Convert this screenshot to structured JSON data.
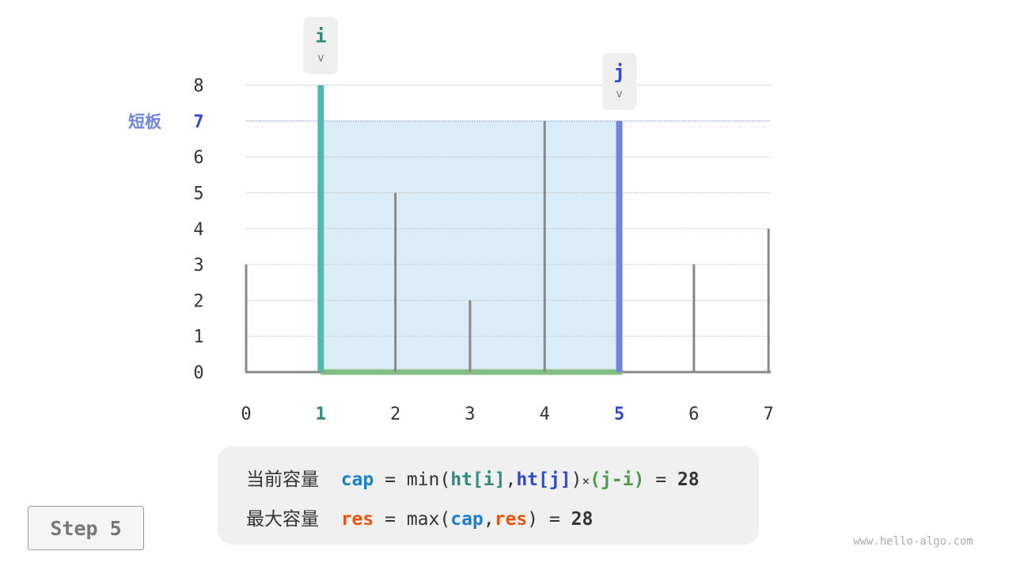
{
  "chart_data": {
    "type": "bar",
    "categories": [
      "0",
      "1",
      "2",
      "3",
      "4",
      "5",
      "6",
      "7"
    ],
    "values": [
      3,
      8,
      5,
      2,
      7,
      7,
      3,
      4
    ],
    "yticks": [
      "0",
      "1",
      "2",
      "3",
      "4",
      "5",
      "6",
      "7",
      "8"
    ],
    "ylim": [
      0,
      8
    ],
    "pointer_i": {
      "label": "i",
      "index": 1,
      "arrow": "v"
    },
    "pointer_j": {
      "label": "j",
      "index": 5,
      "arrow": "v"
    },
    "short_board_label": "短板",
    "short_board_value": 7,
    "colors": {
      "i": "#52b8ae",
      "j": "#7085e0",
      "area": "#dbecf9",
      "base": "#82bd82",
      "bar": "#888888",
      "i_text": "#2e8a7a",
      "j_text": "#2e48d0"
    }
  },
  "formula": {
    "line1": {
      "label": "当前容量",
      "var": "cap",
      "eq": "=",
      "fn": "min(",
      "a": "ht[i]",
      "comma": ",",
      "b": "ht[j]",
      "close": ")",
      "times": "×",
      "c": "(j-i)",
      "eq2": "=",
      "result": "28"
    },
    "line2": {
      "label": "最大容量",
      "var": "res",
      "eq": "=",
      "fn": "max(",
      "a": "cap",
      "comma": ",",
      "b": "res",
      "close": ")",
      "eq2": "=",
      "result": "28"
    }
  },
  "step_label": "Step 5",
  "watermark": "www.hello-algo.com"
}
